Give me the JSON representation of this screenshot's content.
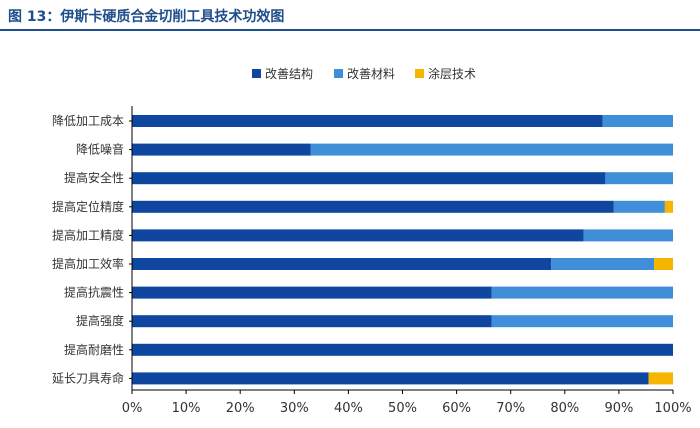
{
  "page": {
    "title": "图 13：伊斯卡硬质合金切削工具技术功效图"
  },
  "colors": {
    "title": "#1f4e8c",
    "axis": "#000000",
    "series": [
      "#0e46a0",
      "#3f8fd8",
      "#f5b500"
    ]
  },
  "chart_data": {
    "type": "bar",
    "orientation": "horizontal",
    "stacked": true,
    "title": "",
    "xlabel": "",
    "ylabel": "",
    "xlim": [
      0,
      100
    ],
    "x_ticks": [
      "0%",
      "10%",
      "20%",
      "30%",
      "40%",
      "50%",
      "60%",
      "70%",
      "80%",
      "90%",
      "100%"
    ],
    "legend_position": "top-center",
    "grid": false,
    "categories": [
      "降低加工成本",
      "降低噪音",
      "提高安全性",
      "提高定位精度",
      "提高加工精度",
      "提高加工效率",
      "提高抗震性",
      "提高强度",
      "提高耐磨性",
      "延长刀具寿命"
    ],
    "series": [
      {
        "name": "改善结构",
        "values": [
          87,
          33,
          87.5,
          89,
          83.5,
          77.5,
          66.5,
          66.5,
          100,
          95.5
        ]
      },
      {
        "name": "改善材料",
        "values": [
          13,
          67,
          12.5,
          9.5,
          16.5,
          19,
          33.5,
          33.5,
          0,
          0
        ]
      },
      {
        "name": "涂层技术",
        "values": [
          0,
          0,
          0,
          1.5,
          0,
          3.5,
          0,
          0,
          0,
          4.5
        ]
      }
    ]
  }
}
